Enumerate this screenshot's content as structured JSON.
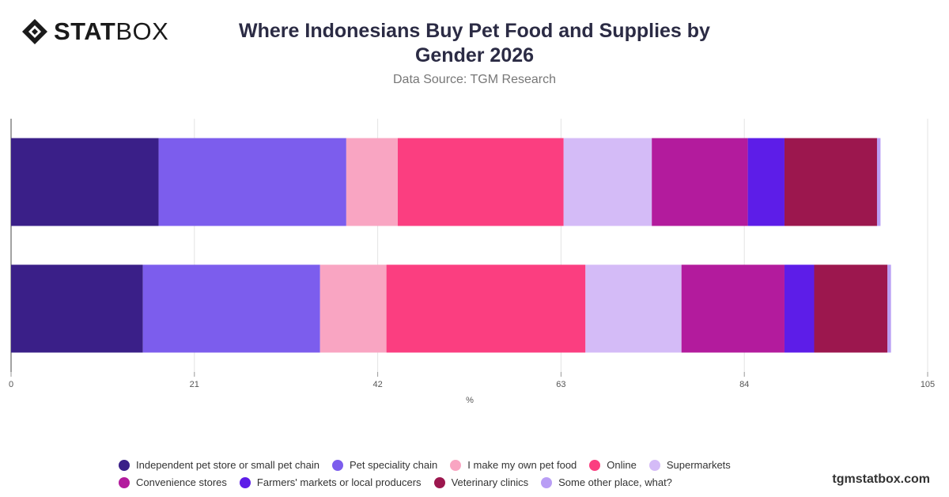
{
  "logo": {
    "text_bold": "STAT",
    "text_light": "BOX"
  },
  "header": {
    "title": "Where Indonesians Buy Pet Food and Supplies by Gender 2026",
    "subtitle": "Data Source: TGM Research"
  },
  "brand": "tgmstatbox.com",
  "chart_data": {
    "type": "bar",
    "orientation": "horizontal",
    "stacked": true,
    "categories": [
      "",
      ""
    ],
    "xlabel": "%",
    "xlim": [
      0,
      105
    ],
    "xticks": [
      0,
      21,
      42,
      63,
      84,
      105
    ],
    "grid": true,
    "legend": "bottom",
    "series": [
      {
        "name": "Independent pet store or small pet chain",
        "color": "#3a1f88",
        "values": [
          16.9,
          15.1
        ]
      },
      {
        "name": "Pet speciality chain",
        "color": "#7c5ded",
        "values": [
          21.5,
          20.3
        ]
      },
      {
        "name": "I make my own pet food",
        "color": "#f9a5c2",
        "values": [
          5.9,
          7.6
        ]
      },
      {
        "name": "Online",
        "color": "#fb3e80",
        "values": [
          19.0,
          22.8
        ]
      },
      {
        "name": "Supermarkets",
        "color": "#d4bbf7",
        "values": [
          10.1,
          11.0
        ]
      },
      {
        "name": "Convenience stores",
        "color": "#b31b9d",
        "values": [
          11.0,
          11.8
        ]
      },
      {
        "name": "Farmers' markets or local producers",
        "color": "#5d1de8",
        "values": [
          4.2,
          3.4
        ]
      },
      {
        "name": "Veterinary clinics",
        "color": "#9c174e",
        "values": [
          10.6,
          8.4
        ]
      },
      {
        "name": "Some other place, what?",
        "color": "#b99ef5",
        "values": [
          0.4,
          0.4
        ]
      }
    ]
  }
}
